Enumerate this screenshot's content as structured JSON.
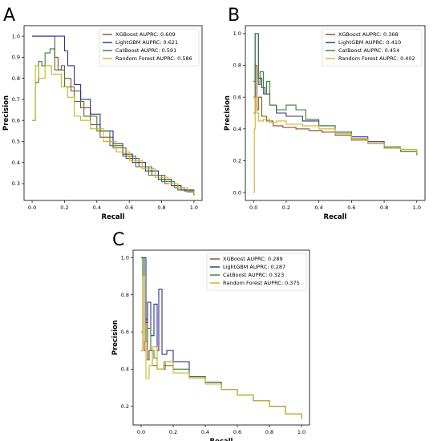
{
  "chart_data": [
    {
      "panel_letter": "A",
      "type": "line",
      "xlabel": "Recall",
      "ylabel": "Precision",
      "xlim": [
        -0.05,
        1.05
      ],
      "ylim": [
        0.22,
        1.05
      ],
      "xticks": [
        "0.0",
        "0.2",
        "0.4",
        "0.6",
        "0.8",
        "1.0"
      ],
      "yticks": [
        "0.3",
        "0.4",
        "0.5",
        "0.6",
        "0.7",
        "0.8",
        "0.9",
        "1.0"
      ],
      "legend_position": "top-right",
      "series": [
        {
          "name": "XGBoost AUPRC: 0.609",
          "color": "#8b4a2b",
          "x": [
            0.0,
            0.12,
            0.14,
            0.16,
            0.18,
            0.2,
            0.24,
            0.3,
            0.36,
            0.42,
            0.5,
            0.58,
            0.66,
            0.74,
            0.82,
            0.9,
            0.96,
            1.0
          ],
          "y": [
            1.0,
            1.0,
            0.9,
            0.84,
            0.86,
            0.8,
            0.74,
            0.66,
            0.58,
            0.52,
            0.47,
            0.42,
            0.38,
            0.34,
            0.3,
            0.27,
            0.26,
            0.245
          ]
        },
        {
          "name": "LightGBM AUPRC: 0.621",
          "color": "#2f2f8f",
          "x": [
            0.0,
            0.19,
            0.2,
            0.22,
            0.26,
            0.3,
            0.36,
            0.42,
            0.5,
            0.56,
            0.62,
            0.7,
            0.78,
            0.86,
            0.92,
            1.0
          ],
          "y": [
            1.0,
            1.0,
            0.93,
            0.86,
            0.77,
            0.7,
            0.63,
            0.55,
            0.49,
            0.44,
            0.4,
            0.36,
            0.32,
            0.29,
            0.27,
            0.245
          ]
        },
        {
          "name": "CatBoost AUPRC: 0.591",
          "color": "#3e7d2f",
          "x": [
            0.0,
            0.02,
            0.04,
            0.06,
            0.08,
            0.11,
            0.14,
            0.2,
            0.26,
            0.32,
            0.4,
            0.48,
            0.56,
            0.64,
            0.72,
            0.8,
            0.88,
            0.94,
            1.0
          ],
          "y": [
            0.6,
            0.78,
            0.88,
            0.86,
            0.92,
            0.94,
            0.84,
            0.76,
            0.69,
            0.62,
            0.55,
            0.48,
            0.43,
            0.38,
            0.34,
            0.31,
            0.28,
            0.265,
            0.245
          ]
        },
        {
          "name": "Random Forest AUPRC: 0.586",
          "color": "#c9b423",
          "x": [
            0.0,
            0.02,
            0.04,
            0.08,
            0.12,
            0.18,
            0.22,
            0.26,
            0.3,
            0.36,
            0.44,
            0.52,
            0.6,
            0.68,
            0.76,
            0.84,
            0.9,
            0.96,
            1.0
          ],
          "y": [
            0.6,
            0.86,
            0.8,
            0.86,
            0.82,
            0.76,
            0.71,
            0.62,
            0.6,
            0.56,
            0.5,
            0.45,
            0.41,
            0.37,
            0.33,
            0.3,
            0.28,
            0.265,
            0.25
          ]
        }
      ]
    },
    {
      "panel_letter": "B",
      "type": "line",
      "xlabel": "Recall",
      "ylabel": "Precision",
      "xlim": [
        -0.05,
        1.05
      ],
      "ylim": [
        -0.05,
        1.05
      ],
      "xticks": [
        "0.0",
        "0.2",
        "0.4",
        "0.6",
        "0.8",
        "1.0"
      ],
      "yticks": [
        "0.0",
        "0.2",
        "0.4",
        "0.6",
        "0.8",
        "1.0"
      ],
      "legend_position": "top-right",
      "series": [
        {
          "name": "XGBoost AUPRC: 0.368",
          "color": "#8b4a2b",
          "x": [
            0.0,
            0.01,
            0.02,
            0.03,
            0.05,
            0.08,
            0.12,
            0.18,
            0.26,
            0.34,
            0.42,
            0.5,
            0.6,
            0.7,
            0.8,
            0.9,
            1.0
          ],
          "y": [
            0.5,
            0.8,
            0.52,
            0.6,
            0.48,
            0.45,
            0.42,
            0.41,
            0.4,
            0.39,
            0.38,
            0.36,
            0.33,
            0.31,
            0.29,
            0.26,
            0.235
          ]
        },
        {
          "name": "LightGBM AUPRC: 0.410",
          "color": "#2f2f8f",
          "x": [
            0.0,
            0.01,
            0.02,
            0.03,
            0.05,
            0.07,
            0.1,
            0.14,
            0.2,
            0.3,
            0.4,
            0.5,
            0.6,
            0.7,
            0.8,
            0.9,
            1.0
          ],
          "y": [
            0.7,
            1.0,
            1.0,
            0.72,
            0.66,
            0.62,
            0.55,
            0.5,
            0.48,
            0.45,
            0.42,
            0.38,
            0.35,
            0.32,
            0.29,
            0.26,
            0.235
          ]
        },
        {
          "name": "CatBoost AUPRC: 0.454",
          "color": "#3e7d2f",
          "x": [
            0.0,
            0.01,
            0.03,
            0.04,
            0.06,
            0.08,
            0.1,
            0.14,
            0.2,
            0.26,
            0.32,
            0.4,
            0.5,
            0.6,
            0.7,
            0.8,
            0.9,
            1.0
          ],
          "y": [
            0.6,
            1.0,
            0.68,
            0.76,
            0.62,
            0.7,
            0.55,
            0.52,
            0.55,
            0.52,
            0.46,
            0.42,
            0.38,
            0.34,
            0.31,
            0.28,
            0.26,
            0.235
          ]
        },
        {
          "name": "Random Forest AUPRC: 0.402",
          "color": "#c9b423",
          "x": [
            0.0,
            0.005,
            0.01,
            0.02,
            0.03,
            0.06,
            0.1,
            0.14,
            0.2,
            0.3,
            0.4,
            0.5,
            0.6,
            0.7,
            0.8,
            0.9,
            1.0
          ],
          "y": [
            0.0,
            0.4,
            0.6,
            0.5,
            0.45,
            0.46,
            0.44,
            0.45,
            0.43,
            0.42,
            0.4,
            0.37,
            0.34,
            0.31,
            0.29,
            0.27,
            0.24
          ]
        }
      ]
    },
    {
      "panel_letter": "C",
      "type": "line",
      "xlabel": "Recall",
      "ylabel": "Precision",
      "xlim": [
        -0.05,
        1.05
      ],
      "ylim": [
        0.1,
        1.04
      ],
      "xticks": [
        "0.0",
        "0.2",
        "0.4",
        "0.6",
        "0.8",
        "1.0"
      ],
      "yticks": [
        "0.2",
        "0.4",
        "0.6",
        "0.8",
        "1.0"
      ],
      "legend_position": "top-right",
      "series": [
        {
          "name": "XGBoost AUPRC: 0.289",
          "color": "#8b4a2b",
          "x": [
            0.0,
            0.01,
            0.02,
            0.03,
            0.04,
            0.05,
            0.07,
            0.1,
            0.15,
            0.2,
            0.3,
            0.4,
            0.5,
            0.6,
            0.7,
            0.8,
            0.9,
            1.0
          ],
          "y": [
            0.5,
            1.0,
            0.5,
            0.67,
            0.45,
            0.5,
            0.42,
            0.4,
            0.44,
            0.4,
            0.36,
            0.33,
            0.29,
            0.26,
            0.23,
            0.2,
            0.16,
            0.13
          ]
        },
        {
          "name": "LightGBM AUPRC: 0.287",
          "color": "#2f2f8f",
          "x": [
            0.0,
            0.02,
            0.03,
            0.04,
            0.06,
            0.08,
            0.1,
            0.11,
            0.13,
            0.16,
            0.2,
            0.3,
            0.4,
            0.5,
            0.6,
            0.7,
            0.8,
            0.9,
            1.0
          ],
          "y": [
            1.0,
            1.0,
            0.65,
            0.76,
            0.58,
            0.75,
            0.5,
            0.83,
            0.48,
            0.5,
            0.44,
            0.36,
            0.33,
            0.29,
            0.26,
            0.23,
            0.2,
            0.16,
            0.13
          ]
        },
        {
          "name": "CatBoost AUPRC: 0.323",
          "color": "#3e7d2f",
          "x": [
            0.0,
            0.01,
            0.02,
            0.04,
            0.06,
            0.08,
            0.1,
            0.14,
            0.2,
            0.3,
            0.4,
            0.5,
            0.6,
            0.7,
            0.8,
            0.9,
            1.0
          ],
          "y": [
            0.6,
            1.0,
            0.55,
            0.62,
            0.5,
            0.46,
            0.4,
            0.42,
            0.4,
            0.36,
            0.33,
            0.29,
            0.26,
            0.23,
            0.2,
            0.16,
            0.13
          ]
        },
        {
          "name": "Random Forest AUPRC: 0.375",
          "color": "#c9b423",
          "x": [
            0.0,
            0.01,
            0.02,
            0.03,
            0.05,
            0.07,
            0.1,
            0.14,
            0.2,
            0.3,
            0.4,
            0.5,
            0.6,
            0.7,
            0.8,
            0.9,
            1.0
          ],
          "y": [
            0.5,
            0.9,
            0.55,
            0.35,
            0.42,
            0.52,
            0.4,
            0.44,
            0.38,
            0.35,
            0.32,
            0.29,
            0.26,
            0.23,
            0.2,
            0.16,
            0.13
          ]
        }
      ]
    }
  ]
}
